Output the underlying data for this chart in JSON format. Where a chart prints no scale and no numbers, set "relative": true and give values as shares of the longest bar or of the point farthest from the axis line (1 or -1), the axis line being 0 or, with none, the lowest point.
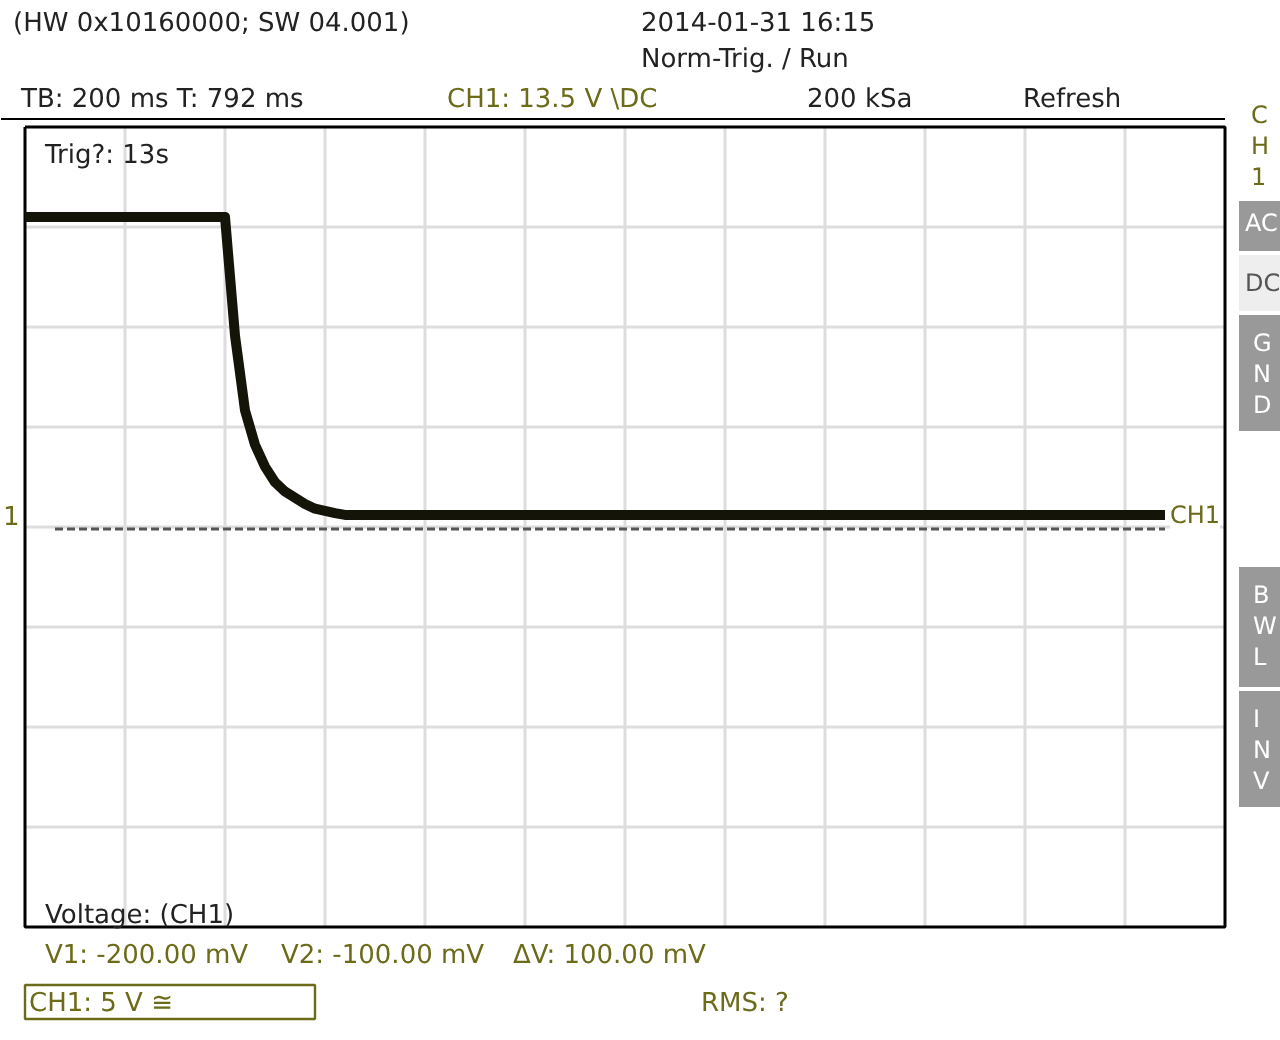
{
  "chart_data": {
    "type": "line",
    "relative": true,
    "title": "(HW 0x10160000; SW 04.001)",
    "categories": [
      null,
      null,
      null,
      null,
      null,
      null,
      null,
      null,
      null,
      null,
      null,
      null,
      null,
      null,
      null,
      null,
      null,
      null,
      null,
      null,
      null,
      null,
      null,
      null,
      null,
      null,
      null,
      null,
      null,
      null,
      null,
      null,
      null,
      null,
      null,
      null,
      null,
      null,
      null,
      null,
      null,
      null,
      null,
      null,
      null,
      null,
      null,
      null,
      null,
      null,
      null,
      null,
      null,
      null,
      null,
      null,
      null,
      null,
      null,
      null,
      null,
      null,
      null,
      null,
      null,
      null,
      null,
      null,
      null,
      null,
      null,
      null,
      null,
      null,
      null,
      null,
      null,
      null,
      null,
      null,
      null,
      null,
      null,
      null,
      null,
      null,
      null,
      null,
      null,
      null,
      null,
      null,
      null,
      null,
      null,
      null,
      null,
      null,
      null,
      null,
      null,
      null,
      null,
      null,
      null,
      null,
      null,
      null,
      null,
      null,
      null,
      null,
      null,
      null,
      null
    ],
    "series": [
      {
        "name": "CH1",
        "color": "#141408",
        "values": [
          1,
          1,
          1,
          1,
          1,
          1,
          1,
          1,
          1,
          1,
          1,
          1,
          1,
          1,
          1,
          1,
          1,
          1,
          1,
          1,
          1,
          0.62,
          0.38,
          0.27,
          0.2,
          0.15,
          0.12,
          0.1,
          0.08,
          0.065,
          0.058,
          0.051,
          0.045,
          0.045,
          0.045,
          0.045,
          0.045,
          0.045,
          0.045,
          0.045,
          0.045,
          0.045,
          0.045,
          0.045,
          0.045,
          0.045,
          0.045,
          0.045,
          0.045,
          0.045,
          0.045,
          0.045,
          0.045,
          0.045,
          0.045,
          0.045,
          0.045,
          0.045,
          0.045,
          0.045,
          0.045,
          0.045,
          0.045,
          0.045,
          0.045,
          0.045,
          0.045,
          0.045,
          0.045,
          0.045,
          0.045,
          0.045,
          0.045,
          0.045,
          0.045,
          0.045,
          0.045,
          0.045,
          0.045,
          0.045,
          0.045,
          0.045,
          0.045,
          0.045,
          0.045,
          0.045,
          0.045,
          0.045,
          0.045,
          0.045,
          0.045,
          0.045,
          0.045,
          0.045,
          0.045,
          0.045,
          0.045,
          0.045,
          0.045,
          0.045,
          0.045,
          0.045,
          0.045,
          0.045,
          0.045,
          0.045,
          0.045,
          0.045,
          0.045,
          0.045,
          0.045,
          0.045,
          0.045,
          0.045,
          0.045
        ]
      }
    ],
    "ref_lines": [
      {
        "axis": "y",
        "value": 0,
        "line_style": "dashed",
        "color": "#555555"
      }
    ],
    "grid": true,
    "line_style": "solid",
    "marker": "none",
    "annotations": [
      "2014-01-31 16:15",
      "Norm-Trig. / Run",
      "TB: 200 ms  T: 792 ms",
      "CH1: 13.5 V \\DC",
      "200 kSa",
      "Refresh",
      "Trig?: 13s",
      "Voltage: (CH1)",
      "V1: -200.00 mV",
      "V2: -100.00 mV",
      "ΔV: 100.00 mV",
      "CH1: 5 V ≅",
      "RMS: ?",
      "CH1",
      "AC",
      "DC",
      "GND",
      "BWL",
      "INV",
      "1"
    ]
  }
}
